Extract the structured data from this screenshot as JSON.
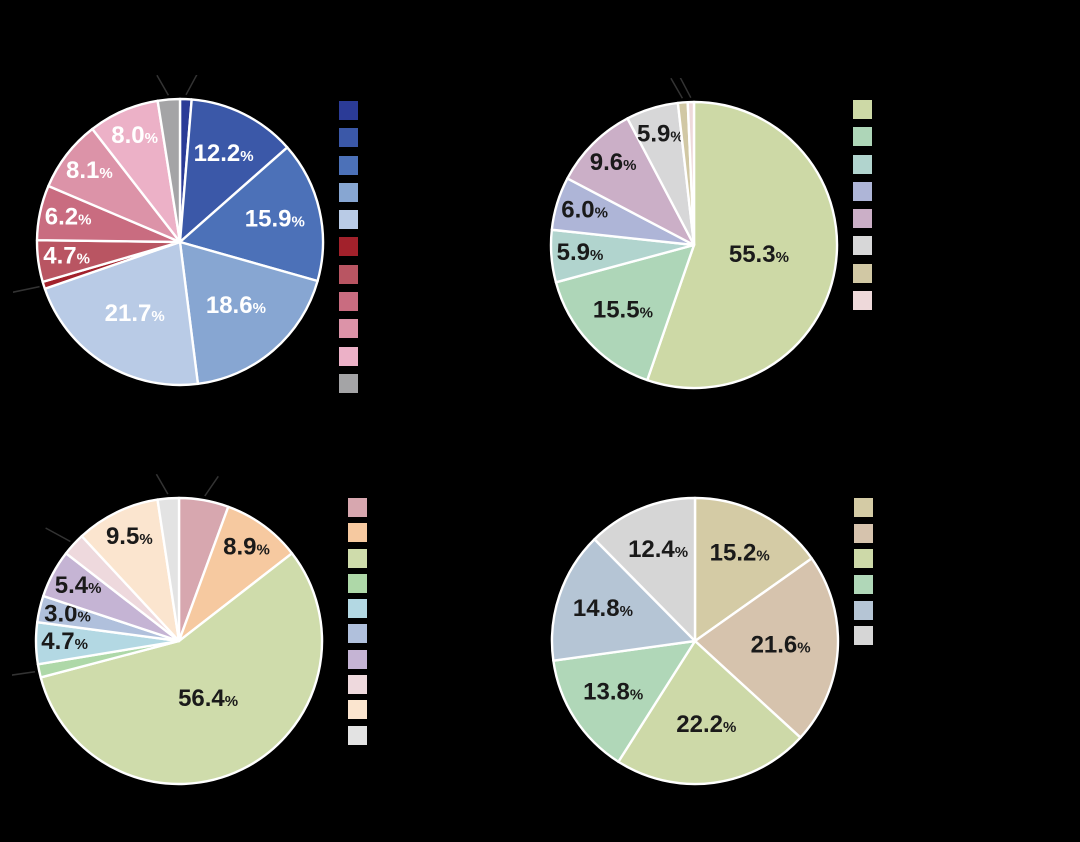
{
  "background_color": "#000000",
  "wedge_border_color": "#ffffff",
  "leader_line_color": "#333333",
  "chart_data": [
    {
      "id": "pie-top-left",
      "type": "pie",
      "start_angle_deg": 90,
      "direction": "clockwise",
      "legend_position": "right",
      "label_suffix": "%",
      "label_color": "#ffffff",
      "values": [
        1.3,
        12.2,
        15.9,
        18.6,
        21.7,
        0.8,
        4.7,
        6.2,
        8.1,
        8.0,
        2.5
      ],
      "colors": [
        "#2b3b97",
        "#3b58a8",
        "#4c71b8",
        "#87a6d2",
        "#b9cbe6",
        "#a2212b",
        "#b95562",
        "#c96c80",
        "#dc93a8",
        "#ecb1c7",
        "#a4a4a6"
      ],
      "label_visible": [
        false,
        true,
        true,
        true,
        true,
        false,
        true,
        true,
        true,
        true,
        false
      ],
      "leader_line": [
        true,
        false,
        false,
        false,
        false,
        true,
        false,
        false,
        false,
        false,
        true
      ]
    },
    {
      "id": "pie-top-right",
      "type": "pie",
      "start_angle_deg": 90,
      "direction": "clockwise",
      "legend_position": "right",
      "label_suffix": "%",
      "label_color": "#1a1a1a",
      "values": [
        55.3,
        15.5,
        5.9,
        6.0,
        9.6,
        5.9,
        1.1,
        0.7
      ],
      "colors": [
        "#cdd9a6",
        "#aed6b8",
        "#b1d4ce",
        "#aeb5d7",
        "#cbafc7",
        "#d7d7d8",
        "#d1c8a4",
        "#eed9da"
      ],
      "label_visible": [
        true,
        true,
        true,
        true,
        true,
        true,
        false,
        false
      ],
      "leader_line": [
        false,
        false,
        false,
        false,
        false,
        false,
        true,
        true
      ]
    },
    {
      "id": "pie-bottom-left",
      "type": "pie",
      "start_angle_deg": 90,
      "direction": "clockwise",
      "legend_position": "right",
      "label_suffix": "%",
      "label_color": "#1a1a1a",
      "values": [
        5.6,
        8.9,
        56.4,
        1.5,
        4.7,
        3.0,
        5.4,
        2.6,
        9.5,
        2.4
      ],
      "colors": [
        "#d7a7af",
        "#f6c9a0",
        "#cfdcab",
        "#aed8a8",
        "#b3d8e3",
        "#b0c0dc",
        "#c5b4d4",
        "#eed9dd",
        "#fbe5cf",
        "#e3e3e3"
      ],
      "label_visible": [
        false,
        true,
        true,
        false,
        true,
        true,
        true,
        false,
        true,
        false
      ],
      "leader_line": [
        true,
        false,
        false,
        true,
        false,
        false,
        false,
        true,
        false,
        true
      ]
    },
    {
      "id": "pie-bottom-right",
      "type": "pie",
      "start_angle_deg": 90,
      "direction": "clockwise",
      "legend_position": "right",
      "label_suffix": "%",
      "label_color": "#1a1a1a",
      "values": [
        15.2,
        21.6,
        22.2,
        13.8,
        14.8,
        12.4
      ],
      "colors": [
        "#d4cba5",
        "#d6c3ad",
        "#cdd9a8",
        "#b0d7b8",
        "#b5c5d5",
        "#d6d6d6"
      ],
      "label_visible": [
        true,
        true,
        true,
        true,
        true,
        true
      ],
      "leader_line": [
        false,
        false,
        false,
        false,
        false,
        false
      ]
    }
  ]
}
